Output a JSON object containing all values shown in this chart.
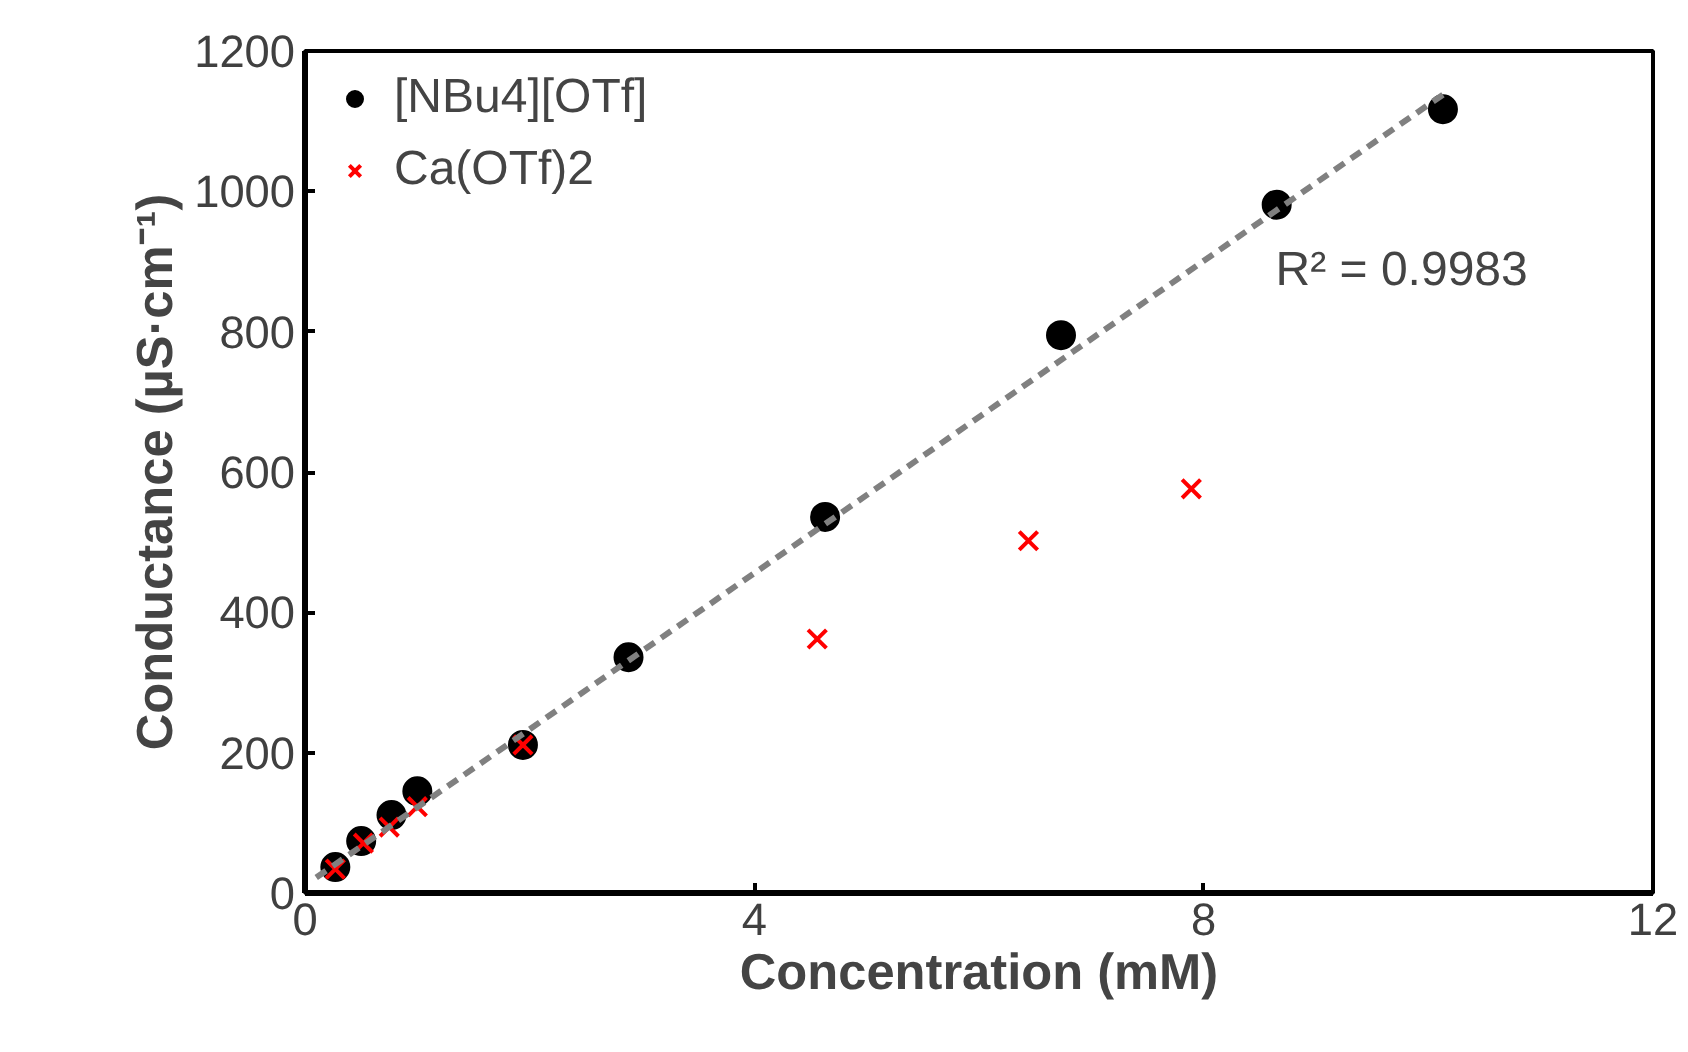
{
  "chart_data": {
    "type": "scatter",
    "xlabel": "Concentration (mM)",
    "ylabel": "Conductance (µS·cm⁻¹)",
    "xlim": [
      0,
      12
    ],
    "ylim": [
      0,
      1200
    ],
    "xticks": [
      0,
      4,
      8,
      12
    ],
    "yticks": [
      0,
      200,
      400,
      600,
      800,
      1000,
      1200
    ],
    "grid": false,
    "legend": "top left",
    "series": [
      {
        "name": "[NBu4][OTf]",
        "color": "#000000",
        "marker": "circle",
        "x": [
          0.27,
          0.5,
          0.77,
          1.0,
          1.94,
          2.88,
          4.63,
          6.73,
          8.65,
          10.13
        ],
        "values": [
          37,
          74,
          111,
          145,
          211,
          336,
          536,
          795,
          981,
          1117
        ]
      },
      {
        "name": "Ca(OTf)2",
        "color": "#ff0000",
        "marker": "cross",
        "x": [
          0.27,
          0.52,
          0.75,
          1.0,
          1.94,
          4.56,
          6.44,
          7.89
        ],
        "values": [
          34,
          71,
          94,
          123,
          211,
          362,
          502,
          576
        ]
      },
      {
        "type": "line",
        "color": "#808080",
        "line_style": "dashed",
        "x": [
          0.1,
          10.15
        ],
        "values": [
          22,
          1140
        ]
      }
    ],
    "annotations": [
      "R² = 0.9983"
    ]
  }
}
